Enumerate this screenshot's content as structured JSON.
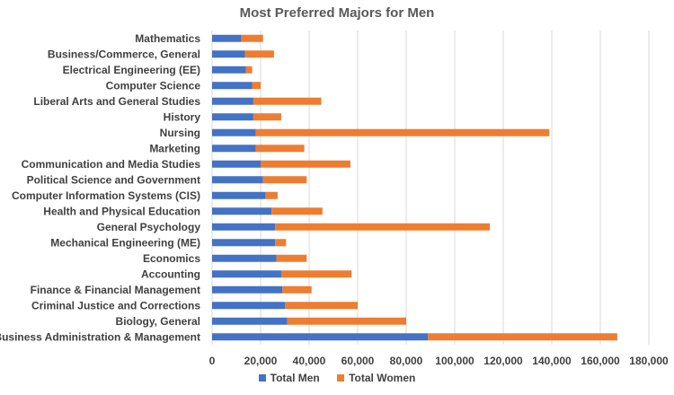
{
  "chart_data": {
    "type": "bar",
    "orientation": "horizontal",
    "stacked": true,
    "title": "Most Preferred Majors for Men",
    "xlabel": "",
    "ylabel": "",
    "xlim": [
      0,
      180000
    ],
    "xticks": [
      "0",
      "20,000",
      "40,000",
      "60,000",
      "80,000",
      "100,000",
      "120,000",
      "140,000",
      "160,000",
      "180,000"
    ],
    "grid": "vertical",
    "legend_position": "bottom",
    "categories": [
      "Mathematics",
      "Business/Commerce, General",
      "Electrical Engineering (EE)",
      "Computer Science",
      "Liberal Arts and General Studies",
      "History",
      "Nursing",
      "Marketing",
      "Communication and Media Studies",
      "Political Science and Government",
      "Computer Information Systems (CIS)",
      "Health and Physical Education",
      "General Psychology",
      "Mechanical Engineering (ME)",
      "Economics",
      "Accounting",
      "Finance & Financial Management",
      "Criminal Justice and Corrections",
      "Biology, General",
      "Business Administration & Management"
    ],
    "series": [
      {
        "name": "Total Men",
        "color": "#4472c4",
        "values": [
          12000,
          13500,
          14000,
          16500,
          17000,
          17000,
          18000,
          18000,
          20000,
          21000,
          22000,
          24500,
          26000,
          26000,
          26500,
          28500,
          29000,
          30000,
          31000,
          89000
        ]
      },
      {
        "name": "Total Women",
        "color": "#ed7d31",
        "values": [
          9000,
          12000,
          2500,
          3500,
          28000,
          11500,
          121000,
          20000,
          37000,
          18000,
          5000,
          21000,
          88500,
          4500,
          12500,
          29000,
          12000,
          30000,
          49000,
          78000
        ]
      }
    ]
  }
}
